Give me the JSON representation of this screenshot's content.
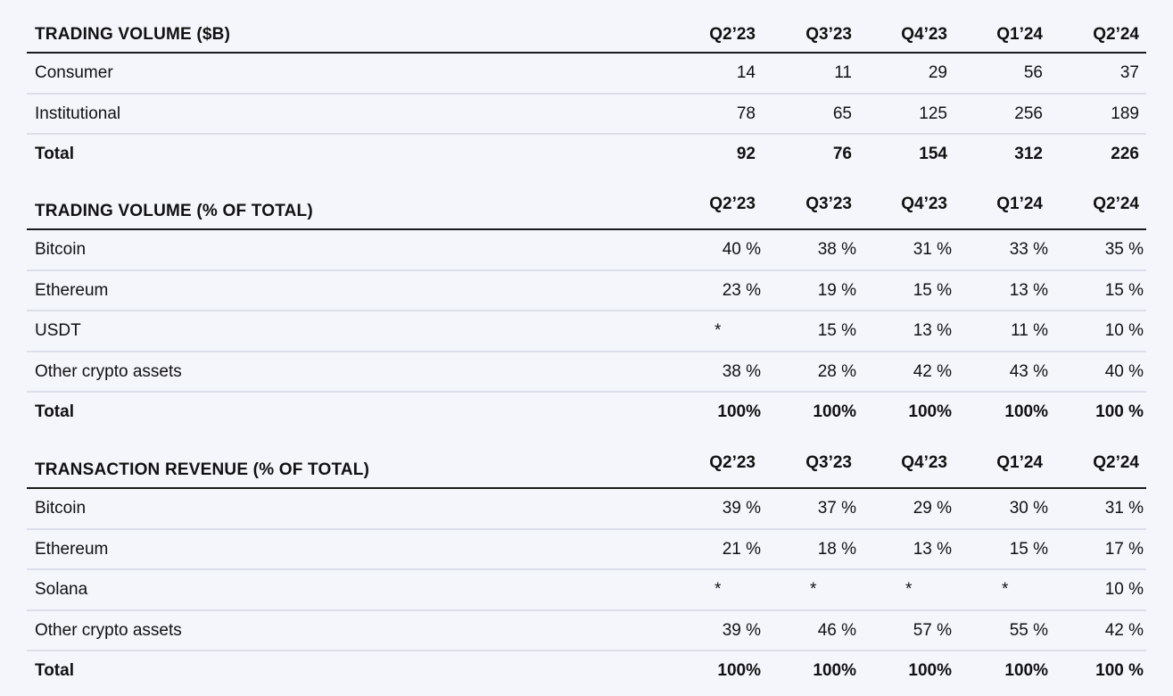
{
  "quarters": [
    "Q2’23",
    "Q3’23",
    "Q4’23",
    "Q1’24",
    "Q2’24"
  ],
  "volume": {
    "title": "TRADING VOLUME ($B)",
    "rows": [
      {
        "label": "Consumer",
        "values": [
          "14",
          "11",
          "29",
          "56",
          "37"
        ]
      },
      {
        "label": "Institutional",
        "values": [
          "78",
          "65",
          "125",
          "256",
          "189"
        ]
      }
    ],
    "total": {
      "label": "Total",
      "values": [
        "92",
        "76",
        "154",
        "312",
        "226"
      ]
    }
  },
  "volume_pct": {
    "title": "TRADING VOLUME (% OF TOTAL)",
    "rows": [
      {
        "label": "Bitcoin",
        "values": [
          "40 %",
          "38 %",
          "31 %",
          "33 %",
          "35 %"
        ]
      },
      {
        "label": "Ethereum",
        "values": [
          "23 %",
          "19 %",
          "15 %",
          "13 %",
          "15 %"
        ]
      },
      {
        "label": "USDT",
        "values": [
          "*",
          "15 %",
          "13 %",
          "11 %",
          "10 %"
        ]
      },
      {
        "label": "Other crypto assets",
        "values": [
          "38 %",
          "28 %",
          "42 %",
          "43 %",
          "40 %"
        ]
      }
    ],
    "total": {
      "label": "Total",
      "values": [
        "100%",
        "100%",
        "100%",
        "100%",
        "100 %"
      ]
    }
  },
  "revenue_pct": {
    "title": "TRANSACTION REVENUE (% OF TOTAL)",
    "rows": [
      {
        "label": "Bitcoin",
        "values": [
          "39 %",
          "37 %",
          "29 %",
          "30 %",
          "31 %"
        ]
      },
      {
        "label": "Ethereum",
        "values": [
          "21 %",
          "18 %",
          "13 %",
          "15 %",
          "17 %"
        ]
      },
      {
        "label": "Solana",
        "values": [
          "*",
          "*",
          "*",
          "*",
          "10 %"
        ]
      },
      {
        "label": "Other crypto assets",
        "values": [
          "39 %",
          "46 %",
          "57 %",
          "55 %",
          "42 %"
        ]
      }
    ],
    "total": {
      "label": "Total",
      "values": [
        "100%",
        "100%",
        "100%",
        "100%",
        "100 %"
      ]
    }
  }
}
